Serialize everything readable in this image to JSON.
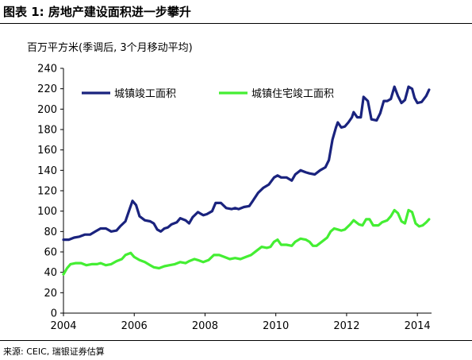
{
  "figure": {
    "title": "图表 1: 房地产建设面积进一步攀升",
    "ylabel": "百万平方米(季调后, 3个月移动平均)",
    "source": "来源: CEIC, 瑞银证券估算"
  },
  "chart_data": {
    "type": "line",
    "title": "",
    "xlabel": "",
    "ylabel": "百万平方米(季调后, 3个月移动平均)",
    "xlim": [
      2004,
      2014.4
    ],
    "ylim": [
      0,
      240
    ],
    "yticks": [
      0,
      20,
      40,
      60,
      80,
      100,
      120,
      140,
      160,
      180,
      200,
      220,
      240
    ],
    "xticks": [
      2004,
      2006,
      2008,
      2010,
      2012,
      2014
    ],
    "xtick_labels": [
      "2004",
      "2006",
      "2008",
      "2010",
      "2012",
      "2014"
    ],
    "ytick_labels": [
      "0",
      "20",
      "40",
      "60",
      "80",
      "100",
      "120",
      "140",
      "160",
      "180",
      "200",
      "220",
      "240"
    ],
    "grid": false,
    "legend_position": "top-left",
    "series": [
      {
        "name": "城镇竣工面积",
        "color": "#1a237e",
        "points": [
          [
            2004.0,
            72
          ],
          [
            2004.15,
            72
          ],
          [
            2004.3,
            74
          ],
          [
            2004.45,
            75
          ],
          [
            2004.6,
            77
          ],
          [
            2004.75,
            77
          ],
          [
            2004.9,
            80
          ],
          [
            2005.05,
            83
          ],
          [
            2005.2,
            83
          ],
          [
            2005.35,
            80
          ],
          [
            2005.5,
            81
          ],
          [
            2005.6,
            85
          ],
          [
            2005.75,
            90
          ],
          [
            2005.85,
            100
          ],
          [
            2005.95,
            110
          ],
          [
            2006.05,
            106
          ],
          [
            2006.15,
            95
          ],
          [
            2006.3,
            91
          ],
          [
            2006.45,
            90
          ],
          [
            2006.55,
            88
          ],
          [
            2006.65,
            82
          ],
          [
            2006.75,
            80
          ],
          [
            2006.85,
            83
          ],
          [
            2006.95,
            84
          ],
          [
            2007.05,
            87
          ],
          [
            2007.2,
            89
          ],
          [
            2007.3,
            93
          ],
          [
            2007.45,
            91
          ],
          [
            2007.55,
            88
          ],
          [
            2007.65,
            94
          ],
          [
            2007.8,
            99
          ],
          [
            2007.95,
            96
          ],
          [
            2008.05,
            97
          ],
          [
            2008.2,
            100
          ],
          [
            2008.3,
            108
          ],
          [
            2008.45,
            108
          ],
          [
            2008.6,
            103
          ],
          [
            2008.75,
            102
          ],
          [
            2008.85,
            103
          ],
          [
            2008.95,
            102
          ],
          [
            2009.1,
            104
          ],
          [
            2009.25,
            105
          ],
          [
            2009.35,
            110
          ],
          [
            2009.5,
            118
          ],
          [
            2009.65,
            123
          ],
          [
            2009.8,
            126
          ],
          [
            2009.95,
            133
          ],
          [
            2010.05,
            135
          ],
          [
            2010.15,
            133
          ],
          [
            2010.3,
            133
          ],
          [
            2010.45,
            130
          ],
          [
            2010.55,
            136
          ],
          [
            2010.7,
            140
          ],
          [
            2010.85,
            138
          ],
          [
            2010.95,
            137
          ],
          [
            2011.1,
            136
          ],
          [
            2011.25,
            140
          ],
          [
            2011.4,
            143
          ],
          [
            2011.5,
            150
          ],
          [
            2011.6,
            170
          ],
          [
            2011.7,
            182
          ],
          [
            2011.75,
            187
          ],
          [
            2011.85,
            182
          ],
          [
            2011.95,
            183
          ],
          [
            2012.05,
            187
          ],
          [
            2012.15,
            192
          ],
          [
            2012.2,
            197
          ],
          [
            2012.3,
            192
          ],
          [
            2012.4,
            192
          ],
          [
            2012.48,
            212
          ],
          [
            2012.6,
            208
          ],
          [
            2012.7,
            190
          ],
          [
            2012.85,
            189
          ],
          [
            2012.95,
            196
          ],
          [
            2013.05,
            208
          ],
          [
            2013.15,
            208
          ],
          [
            2013.25,
            210
          ],
          [
            2013.35,
            222
          ],
          [
            2013.45,
            213
          ],
          [
            2013.55,
            206
          ],
          [
            2013.65,
            209
          ],
          [
            2013.75,
            222
          ],
          [
            2013.85,
            220
          ],
          [
            2013.92,
            211
          ],
          [
            2014.0,
            206
          ],
          [
            2014.12,
            207
          ],
          [
            2014.25,
            213
          ],
          [
            2014.33,
            219
          ]
        ]
      },
      {
        "name": "城镇住宅竣工面积",
        "color": "#44ee33",
        "points": [
          [
            2004.0,
            38
          ],
          [
            2004.1,
            44
          ],
          [
            2004.2,
            48
          ],
          [
            2004.35,
            49
          ],
          [
            2004.5,
            49
          ],
          [
            2004.65,
            47
          ],
          [
            2004.8,
            48
          ],
          [
            2004.95,
            48
          ],
          [
            2005.05,
            49
          ],
          [
            2005.2,
            47
          ],
          [
            2005.35,
            48
          ],
          [
            2005.5,
            51
          ],
          [
            2005.65,
            53
          ],
          [
            2005.75,
            57
          ],
          [
            2005.9,
            59
          ],
          [
            2006.0,
            55
          ],
          [
            2006.15,
            52
          ],
          [
            2006.3,
            50
          ],
          [
            2006.45,
            47
          ],
          [
            2006.55,
            45
          ],
          [
            2006.7,
            44
          ],
          [
            2006.85,
            46
          ],
          [
            2007.0,
            47
          ],
          [
            2007.15,
            48
          ],
          [
            2007.3,
            50
          ],
          [
            2007.45,
            49
          ],
          [
            2007.55,
            51
          ],
          [
            2007.7,
            53
          ],
          [
            2007.8,
            52
          ],
          [
            2007.95,
            50
          ],
          [
            2008.1,
            52
          ],
          [
            2008.25,
            57
          ],
          [
            2008.4,
            57
          ],
          [
            2008.55,
            55
          ],
          [
            2008.7,
            53
          ],
          [
            2008.85,
            54
          ],
          [
            2009.0,
            53
          ],
          [
            2009.15,
            55
          ],
          [
            2009.3,
            57
          ],
          [
            2009.45,
            61
          ],
          [
            2009.6,
            65
          ],
          [
            2009.75,
            64
          ],
          [
            2009.85,
            65
          ],
          [
            2009.95,
            70
          ],
          [
            2010.05,
            72
          ],
          [
            2010.15,
            67
          ],
          [
            2010.3,
            67
          ],
          [
            2010.45,
            66
          ],
          [
            2010.55,
            70
          ],
          [
            2010.7,
            73
          ],
          [
            2010.85,
            72
          ],
          [
            2010.95,
            70
          ],
          [
            2011.05,
            66
          ],
          [
            2011.15,
            66
          ],
          [
            2011.3,
            70
          ],
          [
            2011.45,
            74
          ],
          [
            2011.55,
            80
          ],
          [
            2011.65,
            83
          ],
          [
            2011.75,
            82
          ],
          [
            2011.85,
            81
          ],
          [
            2011.95,
            82
          ],
          [
            2012.1,
            87
          ],
          [
            2012.2,
            91
          ],
          [
            2012.35,
            87
          ],
          [
            2012.45,
            86
          ],
          [
            2012.55,
            92
          ],
          [
            2012.65,
            92
          ],
          [
            2012.75,
            86
          ],
          [
            2012.9,
            86
          ],
          [
            2013.0,
            89
          ],
          [
            2013.15,
            91
          ],
          [
            2013.25,
            95
          ],
          [
            2013.35,
            101
          ],
          [
            2013.45,
            98
          ],
          [
            2013.55,
            90
          ],
          [
            2013.65,
            88
          ],
          [
            2013.75,
            101
          ],
          [
            2013.85,
            99
          ],
          [
            2013.95,
            88
          ],
          [
            2014.05,
            85
          ],
          [
            2014.15,
            86
          ],
          [
            2014.25,
            89
          ],
          [
            2014.33,
            92
          ]
        ]
      }
    ]
  }
}
